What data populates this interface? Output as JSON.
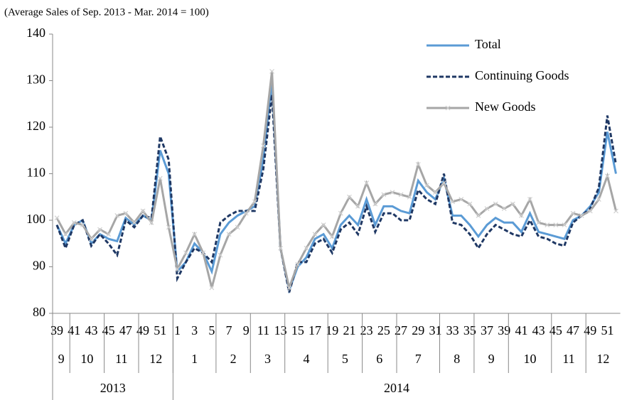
{
  "chart_data": {
    "type": "line",
    "subtitle": "(Average Sales of Sep. 2013 - Mar. 2014 = 100)",
    "categories": [
      "39",
      null,
      "41",
      null,
      "43",
      null,
      "45",
      null,
      "47",
      null,
      "49",
      null,
      "51",
      null,
      "1",
      null,
      "3",
      null,
      "5",
      null,
      "7",
      null,
      "9",
      null,
      "11",
      null,
      "13",
      null,
      "15",
      null,
      "17",
      null,
      "19",
      null,
      "21",
      null,
      "23",
      null,
      "25",
      null,
      "27",
      null,
      "29",
      null,
      "31",
      null,
      "33",
      null,
      "35",
      null,
      "37",
      null,
      "39",
      null,
      "41",
      null,
      "43",
      null,
      "45",
      null,
      "47",
      null,
      "49",
      null,
      "51",
      null
    ],
    "months": [
      "9",
      "10",
      "11",
      "12",
      "1",
      "2",
      "3",
      "4",
      "5",
      "6",
      "7",
      "8",
      "9",
      "10",
      "11",
      "12"
    ],
    "years": [
      "2013",
      "2014"
    ],
    "ylim": [
      80,
      140
    ],
    "yticks": [
      80,
      90,
      100,
      110,
      120,
      130,
      140
    ],
    "legend": "upper right",
    "series": [
      {
        "name": "Total",
        "color": "#5b9bd5",
        "style": "solid",
        "marker": "none",
        "values": [
          99,
          95,
          99,
          100,
          95,
          97,
          96,
          95.5,
          100.5,
          99,
          101,
          100,
          115,
          110,
          89,
          91,
          95,
          93,
          89,
          97,
          99.5,
          101,
          102,
          103,
          113,
          130,
          94,
          85,
          90,
          92,
          96,
          97,
          94,
          99,
          101,
          99,
          104.5,
          99,
          103,
          103,
          102,
          101.5,
          108.5,
          106,
          104.5,
          109,
          101,
          101,
          99,
          96.5,
          99,
          100.5,
          99.5,
          99.5,
          97.5,
          101.5,
          97.5,
          97,
          96.5,
          96,
          100,
          101,
          103,
          106,
          119,
          110
        ]
      },
      {
        "name": "Continuing Goods",
        "color": "#1f3864",
        "style": "dashed",
        "marker": "none",
        "values": [
          99,
          94,
          99,
          100,
          94.5,
          97,
          95,
          92.5,
          100,
          98.5,
          101,
          100.5,
          118,
          113,
          87.5,
          91,
          94,
          93,
          91,
          99.5,
          101,
          102,
          102,
          102,
          111,
          127,
          94,
          84.5,
          91,
          91,
          95,
          96,
          93,
          98,
          99.5,
          97,
          103,
          97.5,
          101.5,
          101.5,
          100,
          100,
          106.5,
          104.5,
          103.5,
          110,
          99.5,
          99,
          97,
          94,
          97,
          99,
          98,
          97,
          96.5,
          100,
          96.5,
          96,
          95,
          94.5,
          99.5,
          101,
          102.5,
          107,
          122.5,
          112
        ]
      },
      {
        "name": "New Goods",
        "color": "#a6a6a6",
        "style": "solid",
        "marker": "x",
        "values": [
          100.5,
          97,
          99.5,
          99,
          96,
          98,
          97,
          101,
          101.5,
          99.5,
          102,
          99.5,
          109,
          98.5,
          89.5,
          93,
          97,
          93,
          85.5,
          92.5,
          97,
          98.5,
          101.5,
          104,
          116,
          132,
          94,
          85.5,
          90.5,
          94,
          97,
          99,
          96.5,
          101.5,
          105,
          103,
          108,
          103.5,
          105.5,
          106,
          105.5,
          105,
          112,
          107.5,
          106,
          108,
          104,
          104.5,
          103.5,
          101,
          102.5,
          103.5,
          102.5,
          103.5,
          101,
          104.5,
          99.5,
          99,
          99,
          99,
          101.5,
          101,
          102,
          104.5,
          109.5,
          102
        ]
      }
    ]
  }
}
